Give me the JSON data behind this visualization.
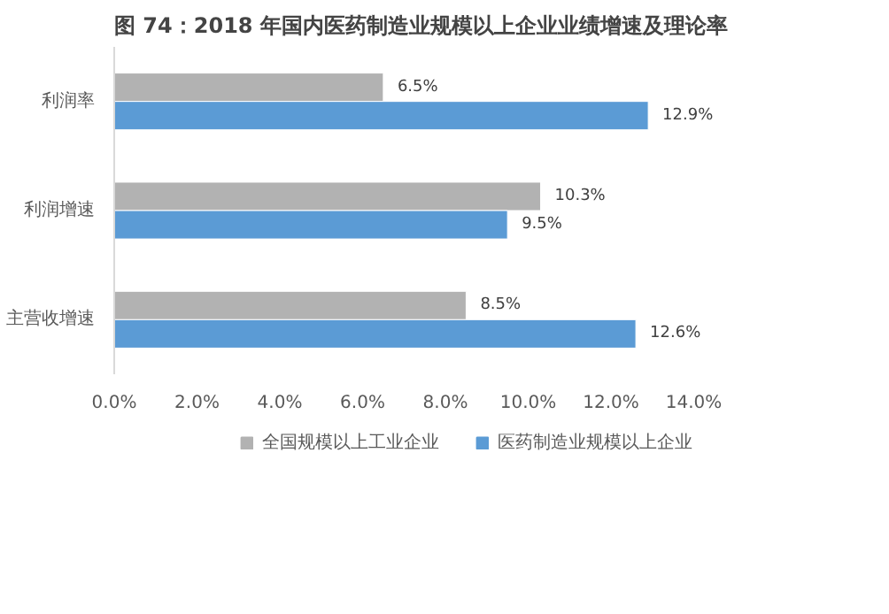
{
  "chart_data": {
    "type": "bar",
    "orientation": "horizontal",
    "title": "图 74：2018 年国内医药制造业规模以上企业业绩增速及理论率",
    "categories": [
      "利润率",
      "利润增速",
      "主营收增速"
    ],
    "series": [
      {
        "name": "全国规模以上工业企业",
        "color": "#b2b2b2",
        "values": [
          6.5,
          10.3,
          8.5
        ],
        "value_labels": [
          "6.5%",
          "10.3%",
          "8.5%"
        ]
      },
      {
        "name": "医药制造业规模以上企业",
        "color": "#5b9bd5",
        "values": [
          12.9,
          9.5,
          12.6
        ],
        "value_labels": [
          "12.9%",
          "9.5%",
          "12.6%"
        ]
      }
    ],
    "xlim": [
      0,
      14
    ],
    "xticks": [
      {
        "value": 0,
        "label": "0.0%"
      },
      {
        "value": 2,
        "label": "2.0%"
      },
      {
        "value": 4,
        "label": "4.0%"
      },
      {
        "value": 6,
        "label": "6.0%"
      },
      {
        "value": 8,
        "label": "8.0%"
      },
      {
        "value": 10,
        "label": "10.0%"
      },
      {
        "value": 12,
        "label": "12.0%"
      },
      {
        "value": 14,
        "label": "14.0%"
      }
    ],
    "grid": false,
    "legend": "bottom"
  }
}
